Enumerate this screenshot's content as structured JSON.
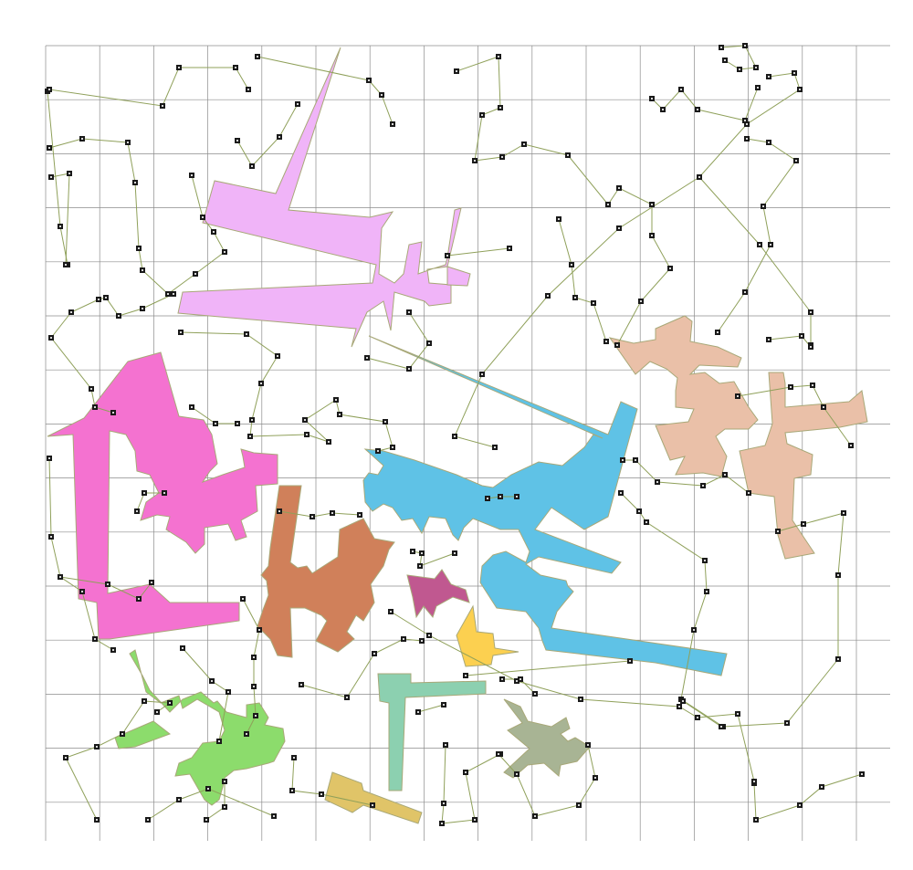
{
  "colors": {
    "grid": "#8c8c8c",
    "route": "#8fa05a",
    "waypoint": "#1a1a1a",
    "background": "#ffffff"
  },
  "shapes": [
    {
      "name": "violet-shape",
      "color": "#f0b4f8"
    },
    {
      "name": "pink-shape",
      "color": "#f472d0"
    },
    {
      "name": "sky-blue-shape",
      "color": "#5fc2e6"
    },
    {
      "name": "peach-shape",
      "color": "#eac0a8"
    },
    {
      "name": "terracotta-shape",
      "color": "#d0805a"
    },
    {
      "name": "magenta-shape",
      "color": "#c05890"
    },
    {
      "name": "yellow-shape",
      "color": "#fcd050"
    },
    {
      "name": "green-shape",
      "color": "#8cdc6c"
    },
    {
      "name": "mint-shape",
      "color": "#8cd0b0"
    },
    {
      "name": "sage-shape",
      "color": "#a8b494"
    },
    {
      "name": "mustard-shape",
      "color": "#e0c468"
    }
  ]
}
